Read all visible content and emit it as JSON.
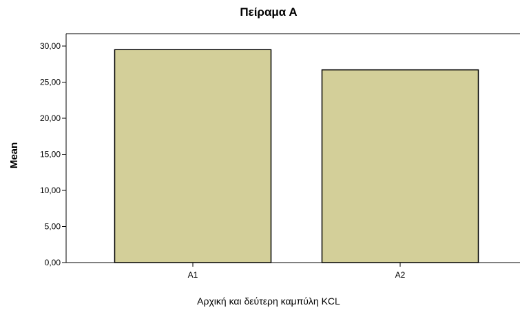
{
  "chart_data": {
    "type": "bar",
    "title": "Πείραμα Α",
    "xlabel": "Αρχική και δεύτερη καμπύλη KCL",
    "ylabel": "Mean",
    "categories": [
      "A1",
      "A2"
    ],
    "values": [
      29.5,
      26.7
    ],
    "ylim": [
      0,
      30
    ],
    "yticks": [
      "0,00",
      "5,00",
      "10,00",
      "15,00",
      "20,00",
      "25,00",
      "30,00"
    ],
    "grid": false,
    "legend": "none",
    "bar_color": "#d3cf99",
    "bar_edge_color": "#000000"
  }
}
